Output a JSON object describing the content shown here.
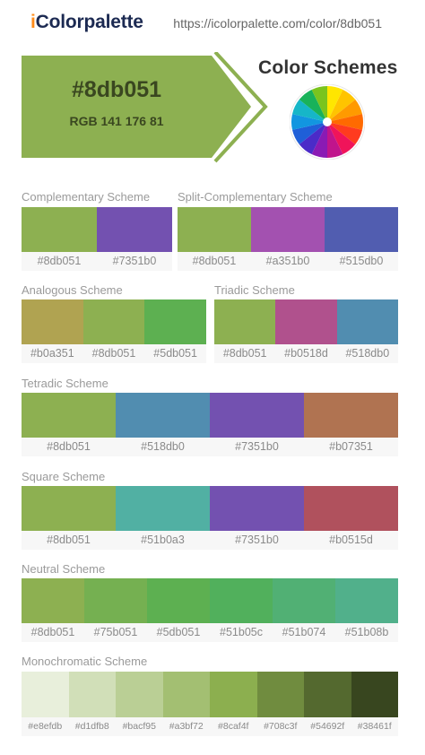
{
  "header": {
    "logo_i": "i",
    "logo_rest": "Colorpalette",
    "url": "https://icolorpalette.com/color/8db051"
  },
  "hero": {
    "hex": "#8db051",
    "rgb": "RGB 141 176 81",
    "color": "#8db051",
    "schemes_title": "Color Schemes"
  },
  "schemes": {
    "complementary": {
      "title": "Complementary Scheme",
      "colors": [
        {
          "hex": "#8db051",
          "label": "#8db051"
        },
        {
          "hex": "#7351b0",
          "label": "#7351b0"
        }
      ]
    },
    "split": {
      "title": "Split-Complementary Scheme",
      "colors": [
        {
          "hex": "#8db051",
          "label": "#8db051"
        },
        {
          "hex": "#a351b0",
          "label": "#a351b0"
        },
        {
          "hex": "#515db0",
          "label": "#515db0"
        }
      ]
    },
    "analogous": {
      "title": "Analogous Scheme",
      "colors": [
        {
          "hex": "#b0a351",
          "label": "#b0a351"
        },
        {
          "hex": "#8db051",
          "label": "#8db051"
        },
        {
          "hex": "#5db051",
          "label": "#5db051"
        }
      ]
    },
    "triadic": {
      "title": "Triadic Scheme",
      "colors": [
        {
          "hex": "#8db051",
          "label": "#8db051"
        },
        {
          "hex": "#b0518d",
          "label": "#b0518d"
        },
        {
          "hex": "#518db0",
          "label": "#518db0"
        }
      ]
    },
    "tetradic": {
      "title": "Tetradic Scheme",
      "colors": [
        {
          "hex": "#8db051",
          "label": "#8db051"
        },
        {
          "hex": "#518db0",
          "label": "#518db0"
        },
        {
          "hex": "#7351b0",
          "label": "#7351b0"
        },
        {
          "hex": "#b07351",
          "label": "#b07351"
        }
      ]
    },
    "square": {
      "title": "Square Scheme",
      "colors": [
        {
          "hex": "#8db051",
          "label": "#8db051"
        },
        {
          "hex": "#51b0a3",
          "label": "#51b0a3"
        },
        {
          "hex": "#7351b0",
          "label": "#7351b0"
        },
        {
          "hex": "#b0515d",
          "label": "#b0515d"
        }
      ]
    },
    "neutral": {
      "title": "Neutral Scheme",
      "colors": [
        {
          "hex": "#8db051",
          "label": "#8db051"
        },
        {
          "hex": "#75b051",
          "label": "#75b051"
        },
        {
          "hex": "#5db051",
          "label": "#5db051"
        },
        {
          "hex": "#51b05c",
          "label": "#51b05c"
        },
        {
          "hex": "#51b074",
          "label": "#51b074"
        },
        {
          "hex": "#51b08b",
          "label": "#51b08b"
        }
      ]
    },
    "monochromatic": {
      "title": "Monochromatic Scheme",
      "colors": [
        {
          "hex": "#e8efdb",
          "label": "#e8efdb"
        },
        {
          "hex": "#d1dfb8",
          "label": "#d1dfb8"
        },
        {
          "hex": "#bacf95",
          "label": "#bacf95"
        },
        {
          "hex": "#a3bf72",
          "label": "#a3bf72"
        },
        {
          "hex": "#8caf4f",
          "label": "#8caf4f"
        },
        {
          "hex": "#708c3f",
          "label": "#708c3f"
        },
        {
          "hex": "#54692f",
          "label": "#54692f"
        },
        {
          "hex": "#38461f",
          "label": "#38461f"
        }
      ]
    }
  }
}
